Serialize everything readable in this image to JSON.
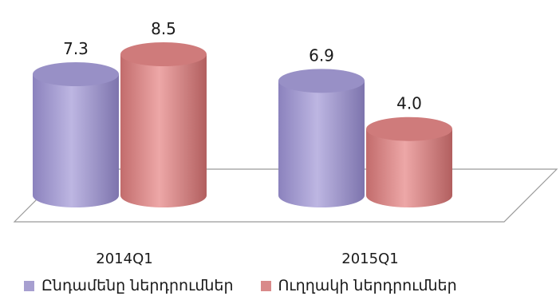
{
  "chart_data": {
    "type": "bar",
    "categories": [
      "2014Q1",
      "2015Q1"
    ],
    "series": [
      {
        "name": "Ընդամենը ներդրումներ",
        "values": [
          7.3,
          6.9
        ],
        "color": "#a79fd0"
      },
      {
        "name": "Ուղղակի ներդրումներ",
        "values": [
          8.5,
          4.0
        ],
        "color": "#d98a8a"
      }
    ],
    "value_labels": [
      "7.3",
      "8.5",
      "6.9",
      "4.0"
    ],
    "ylim": [
      0,
      8.5
    ],
    "shape": "3d-cylinder",
    "legend_position": "bottom",
    "grid": false
  }
}
